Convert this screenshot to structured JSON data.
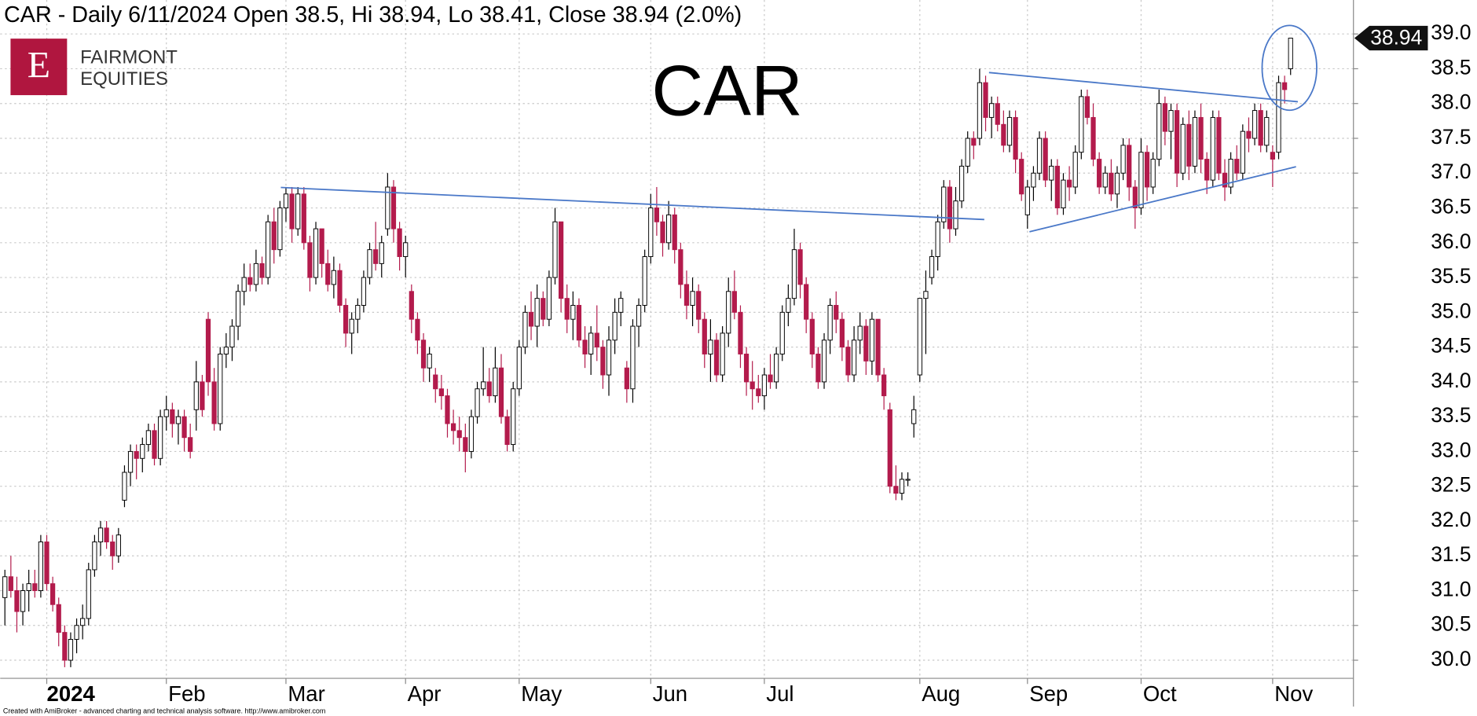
{
  "chart_data": {
    "type": "candlestick",
    "title": "CAR - Daily 6/11/2024 Open 38.5, Hi 38.94, Lo 38.41, Close 38.94 (2.0%)",
    "annotation": "CAR",
    "up_color": "#ffffff",
    "down_color": "#b31b4c",
    "grid": true,
    "ylim": [
      29.74,
      39.19
    ],
    "yticks": [
      {
        "value": 30,
        "label": "30.0"
      },
      {
        "value": 30.5,
        "label": "30.5"
      },
      {
        "value": 31,
        "label": "31.0"
      },
      {
        "value": 31.5,
        "label": "31.5"
      },
      {
        "value": 32,
        "label": "32.0"
      },
      {
        "value": 32.5,
        "label": "32.5"
      },
      {
        "value": 33,
        "label": "33.0"
      },
      {
        "value": 33.5,
        "label": "33.5"
      },
      {
        "value": 34,
        "label": "34.0"
      },
      {
        "value": 34.5,
        "label": "34.5"
      },
      {
        "value": 35,
        "label": "35.0"
      },
      {
        "value": 35.5,
        "label": "35.5"
      },
      {
        "value": 36,
        "label": "36.0"
      },
      {
        "value": 36.5,
        "label": "36.5"
      },
      {
        "value": 37,
        "label": "37.0"
      },
      {
        "value": 37.5,
        "label": "37.5"
      },
      {
        "value": 38,
        "label": "38.0"
      },
      {
        "value": 38.5,
        "label": "38.5"
      },
      {
        "value": 39,
        "label": "39.0"
      }
    ],
    "xticks": [
      {
        "value": 7,
        "label": "2024"
      },
      {
        "value": 27,
        "label": "Feb"
      },
      {
        "value": 47,
        "label": "Mar"
      },
      {
        "value": 67,
        "label": "Apr"
      },
      {
        "value": 86,
        "label": "May"
      },
      {
        "value": 108,
        "label": "Jun"
      },
      {
        "value": 127,
        "label": "Jul"
      },
      {
        "value": 153,
        "label": "Aug"
      },
      {
        "value": 171,
        "label": "Sep"
      },
      {
        "value": 190,
        "label": "Oct"
      },
      {
        "value": 212,
        "label": "Nov"
      }
    ],
    "ohlc": [
      [
        30.9,
        31.3,
        30.5,
        31.2
      ],
      [
        31.2,
        31.5,
        30.9,
        31.0
      ],
      [
        31.0,
        31.2,
        30.4,
        30.7
      ],
      [
        30.7,
        31.1,
        30.5,
        31.0
      ],
      [
        31.0,
        31.3,
        30.7,
        31.1
      ],
      [
        31.1,
        31.3,
        30.9,
        31.0
      ],
      [
        31.0,
        31.8,
        30.9,
        31.7
      ],
      [
        31.7,
        31.8,
        31.0,
        31.1
      ],
      [
        31.1,
        31.2,
        30.7,
        30.8
      ],
      [
        30.8,
        30.9,
        30.2,
        30.4
      ],
      [
        30.4,
        30.5,
        29.9,
        30.0
      ],
      [
        30.0,
        30.4,
        29.9,
        30.3
      ],
      [
        30.3,
        30.6,
        30.1,
        30.5
      ],
      [
        30.5,
        30.8,
        30.3,
        30.6
      ],
      [
        30.6,
        31.4,
        30.5,
        31.3
      ],
      [
        31.3,
        31.8,
        31.2,
        31.7
      ],
      [
        31.7,
        32.0,
        31.5,
        31.9
      ],
      [
        31.9,
        32.0,
        31.6,
        31.7
      ],
      [
        31.7,
        31.8,
        31.3,
        31.5
      ],
      [
        31.5,
        31.9,
        31.4,
        31.8
      ],
      [
        32.3,
        32.8,
        32.2,
        32.7
      ],
      [
        32.7,
        33.1,
        32.5,
        33.0
      ],
      [
        33.0,
        33.1,
        32.6,
        32.9
      ],
      [
        32.9,
        33.2,
        32.7,
        33.1
      ],
      [
        33.1,
        33.4,
        33.0,
        33.3
      ],
      [
        33.3,
        33.4,
        32.8,
        32.9
      ],
      [
        32.9,
        33.6,
        32.8,
        33.5
      ],
      [
        33.5,
        33.8,
        33.3,
        33.6
      ],
      [
        33.6,
        33.7,
        33.2,
        33.4
      ],
      [
        33.4,
        33.6,
        33.1,
        33.5
      ],
      [
        33.5,
        33.6,
        33.0,
        33.2
      ],
      [
        33.2,
        33.4,
        32.9,
        33.0
      ],
      [
        33.6,
        34.3,
        33.3,
        34.0
      ],
      [
        34.0,
        34.1,
        33.5,
        33.6
      ],
      [
        34.9,
        35.0,
        33.8,
        34.0
      ],
      [
        34.0,
        34.2,
        33.3,
        33.4
      ],
      [
        33.4,
        34.5,
        33.3,
        34.4
      ],
      [
        34.4,
        34.7,
        34.2,
        34.5
      ],
      [
        34.5,
        34.9,
        34.3,
        34.8
      ],
      [
        34.8,
        35.4,
        34.6,
        35.3
      ],
      [
        35.3,
        35.7,
        35.1,
        35.5
      ],
      [
        35.5,
        35.7,
        35.3,
        35.4
      ],
      [
        35.4,
        35.9,
        35.3,
        35.7
      ],
      [
        35.7,
        35.8,
        35.4,
        35.5
      ],
      [
        35.5,
        36.4,
        35.4,
        36.3
      ],
      [
        36.3,
        36.5,
        35.7,
        35.9
      ],
      [
        35.9,
        36.6,
        35.8,
        36.5
      ],
      [
        36.5,
        36.8,
        36.3,
        36.7
      ],
      [
        36.7,
        36.8,
        36.0,
        36.2
      ],
      [
        36.2,
        36.8,
        36.1,
        36.7
      ],
      [
        36.7,
        36.8,
        35.9,
        36.0
      ],
      [
        36.0,
        36.1,
        35.3,
        35.5
      ],
      [
        35.5,
        36.3,
        35.4,
        36.2
      ],
      [
        36.2,
        36.2,
        35.5,
        35.7
      ],
      [
        35.7,
        35.9,
        35.3,
        35.4
      ],
      [
        35.4,
        35.8,
        35.2,
        35.6
      ],
      [
        35.6,
        35.7,
        35.0,
        35.1
      ],
      [
        35.1,
        35.2,
        34.5,
        34.7
      ],
      [
        34.7,
        35.0,
        34.4,
        34.9
      ],
      [
        34.9,
        35.2,
        34.7,
        35.1
      ],
      [
        35.1,
        35.6,
        35.0,
        35.5
      ],
      [
        35.5,
        36.0,
        35.4,
        35.9
      ],
      [
        35.9,
        36.3,
        35.6,
        35.7
      ],
      [
        35.7,
        36.1,
        35.5,
        36.0
      ],
      [
        36.2,
        37.0,
        36.1,
        36.8
      ],
      [
        36.8,
        36.9,
        36.0,
        36.2
      ],
      [
        36.2,
        36.3,
        35.6,
        35.8
      ],
      [
        35.8,
        36.1,
        35.5,
        36.0
      ],
      [
        35.3,
        35.4,
        34.7,
        34.9
      ],
      [
        34.9,
        35.0,
        34.4,
        34.6
      ],
      [
        34.6,
        34.7,
        34.0,
        34.2
      ],
      [
        34.2,
        34.5,
        34.0,
        34.4
      ],
      [
        34.1,
        34.2,
        33.7,
        33.9
      ],
      [
        33.9,
        34.1,
        33.6,
        33.8
      ],
      [
        33.8,
        33.9,
        33.2,
        33.4
      ],
      [
        33.4,
        33.6,
        33.1,
        33.3
      ],
      [
        33.3,
        33.5,
        33.0,
        33.2
      ],
      [
        33.2,
        33.4,
        32.7,
        33.0
      ],
      [
        33.0,
        33.6,
        32.9,
        33.5
      ],
      [
        33.5,
        34.0,
        33.4,
        33.9
      ],
      [
        33.9,
        34.5,
        33.8,
        34.0
      ],
      [
        34.0,
        34.2,
        33.7,
        33.8
      ],
      [
        33.8,
        34.5,
        33.7,
        34.2
      ],
      [
        34.2,
        34.4,
        33.4,
        33.5
      ],
      [
        33.5,
        33.6,
        33.0,
        33.1
      ],
      [
        33.1,
        34.0,
        33.0,
        33.9
      ],
      [
        33.9,
        34.6,
        33.8,
        34.5
      ],
      [
        34.5,
        35.1,
        34.4,
        35.0
      ],
      [
        35.0,
        35.3,
        34.6,
        34.8
      ],
      [
        34.8,
        35.4,
        34.5,
        35.2
      ],
      [
        35.2,
        35.3,
        34.8,
        34.9
      ],
      [
        34.9,
        35.6,
        34.8,
        35.5
      ],
      [
        35.5,
        36.5,
        35.4,
        36.3
      ],
      [
        36.3,
        36.3,
        35.0,
        35.2
      ],
      [
        35.2,
        35.4,
        34.7,
        34.9
      ],
      [
        34.9,
        35.3,
        34.6,
        35.1
      ],
      [
        35.1,
        35.2,
        34.5,
        34.6
      ],
      [
        34.6,
        34.8,
        34.2,
        34.4
      ],
      [
        34.4,
        34.8,
        34.1,
        34.7
      ],
      [
        34.7,
        35.1,
        34.3,
        34.5
      ],
      [
        34.5,
        34.6,
        33.9,
        34.1
      ],
      [
        34.1,
        34.8,
        33.8,
        34.6
      ],
      [
        34.6,
        35.2,
        34.4,
        35.0
      ],
      [
        35.0,
        35.3,
        34.8,
        35.2
      ],
      [
        34.2,
        34.3,
        33.7,
        33.9
      ],
      [
        33.9,
        34.9,
        33.7,
        34.8
      ],
      [
        34.8,
        35.2,
        34.5,
        35.1
      ],
      [
        35.1,
        35.9,
        35.0,
        35.8
      ],
      [
        35.8,
        36.7,
        35.7,
        36.5
      ],
      [
        36.5,
        36.8,
        36.1,
        36.3
      ],
      [
        36.3,
        36.4,
        35.8,
        36.0
      ],
      [
        36.0,
        36.6,
        35.9,
        36.4
      ],
      [
        36.4,
        36.5,
        35.7,
        35.9
      ],
      [
        35.9,
        36.0,
        35.2,
        35.4
      ],
      [
        35.4,
        35.6,
        34.9,
        35.1
      ],
      [
        35.1,
        35.5,
        34.8,
        35.3
      ],
      [
        35.3,
        35.4,
        34.7,
        34.9
      ],
      [
        34.9,
        35.0,
        34.2,
        34.4
      ],
      [
        34.4,
        34.9,
        34.0,
        34.6
      ],
      [
        34.6,
        34.7,
        34.0,
        34.1
      ],
      [
        34.1,
        34.8,
        34.0,
        34.7
      ],
      [
        34.7,
        35.5,
        34.5,
        35.3
      ],
      [
        35.3,
        35.6,
        34.9,
        35.0
      ],
      [
        35.0,
        35.1,
        34.2,
        34.4
      ],
      [
        34.4,
        34.5,
        33.8,
        34.0
      ],
      [
        34.0,
        34.3,
        33.6,
        33.9
      ],
      [
        33.9,
        34.1,
        33.7,
        33.8
      ],
      [
        33.8,
        34.2,
        33.6,
        34.1
      ],
      [
        34.1,
        34.4,
        33.9,
        34.0
      ],
      [
        34.0,
        34.5,
        33.9,
        34.4
      ],
      [
        34.4,
        35.1,
        34.3,
        35.0
      ],
      [
        35.0,
        35.4,
        34.8,
        35.2
      ],
      [
        35.2,
        36.2,
        35.1,
        35.9
      ],
      [
        35.9,
        36.0,
        35.2,
        35.4
      ],
      [
        35.4,
        35.5,
        34.7,
        34.9
      ],
      [
        34.9,
        35.0,
        34.2,
        34.4
      ],
      [
        34.4,
        34.5,
        33.9,
        34.0
      ],
      [
        34.0,
        34.7,
        33.9,
        34.6
      ],
      [
        34.6,
        35.2,
        34.4,
        35.1
      ],
      [
        35.1,
        35.3,
        34.7,
        34.9
      ],
      [
        34.9,
        35.0,
        34.3,
        34.5
      ],
      [
        34.5,
        34.6,
        34.0,
        34.1
      ],
      [
        34.1,
        34.8,
        34.0,
        34.6
      ],
      [
        34.6,
        35.0,
        34.4,
        34.8
      ],
      [
        34.8,
        34.9,
        34.1,
        34.3
      ],
      [
        34.3,
        35.0,
        34.1,
        34.9
      ],
      [
        34.9,
        34.9,
        34.0,
        34.1
      ],
      [
        34.1,
        34.2,
        33.6,
        33.8
      ],
      [
        33.6,
        33.7,
        32.4,
        32.5
      ],
      [
        32.5,
        32.8,
        32.3,
        32.4
      ],
      [
        32.4,
        32.7,
        32.3,
        32.6
      ],
      [
        32.6,
        32.7,
        32.5,
        32.6
      ],
      [
        33.4,
        33.8,
        33.2,
        33.6
      ],
      [
        34.1,
        35.2,
        34.0,
        35.2
      ],
      [
        35.2,
        35.6,
        34.4,
        35.3
      ],
      [
        35.5,
        35.9,
        35.4,
        35.8
      ],
      [
        35.8,
        36.4,
        35.6,
        36.3
      ],
      [
        36.3,
        36.9,
        36.2,
        36.8
      ],
      [
        36.8,
        36.9,
        36.0,
        36.2
      ],
      [
        36.2,
        36.8,
        36.1,
        36.6
      ],
      [
        36.6,
        37.2,
        36.5,
        37.1
      ],
      [
        37.1,
        37.6,
        37.0,
        37.5
      ],
      [
        37.5,
        37.6,
        37.2,
        37.4
      ],
      [
        37.5,
        38.5,
        37.4,
        38.3
      ],
      [
        38.3,
        38.4,
        37.6,
        37.8
      ],
      [
        37.8,
        38.1,
        37.5,
        38.0
      ],
      [
        38.0,
        38.1,
        37.6,
        37.7
      ],
      [
        37.7,
        37.9,
        37.3,
        37.4
      ],
      [
        37.4,
        37.9,
        37.3,
        37.8
      ],
      [
        37.8,
        37.9,
        37.0,
        37.2
      ],
      [
        37.2,
        37.3,
        36.6,
        36.7
      ],
      [
        36.4,
        36.9,
        36.2,
        36.8
      ],
      [
        36.8,
        37.1,
        36.6,
        37.0
      ],
      [
        37.0,
        37.6,
        36.9,
        37.5
      ],
      [
        37.5,
        37.6,
        36.8,
        36.9
      ],
      [
        36.9,
        37.2,
        36.6,
        37.1
      ],
      [
        37.1,
        37.2,
        36.4,
        36.5
      ],
      [
        36.5,
        37.0,
        36.4,
        36.9
      ],
      [
        36.9,
        37.1,
        36.6,
        36.8
      ],
      [
        36.8,
        37.4,
        36.7,
        37.3
      ],
      [
        37.3,
        38.2,
        37.2,
        38.1
      ],
      [
        38.1,
        38.2,
        37.7,
        37.8
      ],
      [
        37.8,
        38.0,
        37.1,
        37.2
      ],
      [
        37.2,
        37.3,
        36.7,
        36.8
      ],
      [
        36.8,
        37.1,
        36.7,
        37.0
      ],
      [
        37.0,
        37.2,
        36.6,
        36.7
      ],
      [
        36.7,
        37.1,
        36.5,
        37.0
      ],
      [
        37.0,
        37.5,
        36.9,
        37.4
      ],
      [
        37.4,
        37.5,
        36.6,
        36.8
      ],
      [
        36.8,
        36.9,
        36.2,
        36.5
      ],
      [
        36.5,
        37.5,
        36.4,
        37.3
      ],
      [
        37.3,
        37.4,
        36.6,
        36.8
      ],
      [
        36.8,
        37.3,
        36.7,
        37.2
      ],
      [
        37.2,
        38.2,
        37.1,
        38.0
      ],
      [
        38.0,
        38.1,
        37.4,
        37.6
      ],
      [
        37.6,
        38.0,
        37.2,
        37.9
      ],
      [
        37.9,
        38.0,
        36.8,
        37.0
      ],
      [
        37.0,
        37.8,
        36.9,
        37.7
      ],
      [
        37.7,
        37.9,
        36.9,
        37.1
      ],
      [
        37.1,
        37.9,
        37.0,
        37.8
      ],
      [
        37.8,
        38.0,
        37.0,
        37.2
      ],
      [
        37.2,
        37.3,
        36.7,
        36.9
      ],
      [
        36.9,
        37.9,
        36.8,
        37.8
      ],
      [
        37.8,
        37.9,
        36.9,
        37.0
      ],
      [
        37.0,
        37.2,
        36.6,
        36.8
      ],
      [
        36.8,
        37.3,
        36.7,
        37.2
      ],
      [
        37.2,
        37.4,
        36.9,
        37.0
      ],
      [
        37.0,
        37.7,
        36.9,
        37.6
      ],
      [
        37.6,
        37.8,
        37.3,
        37.5
      ],
      [
        37.5,
        38.0,
        37.4,
        37.9
      ],
      [
        37.9,
        38.0,
        37.3,
        37.4
      ],
      [
        37.4,
        37.9,
        37.3,
        37.8
      ],
      [
        37.3,
        37.4,
        36.8,
        37.2
      ],
      [
        37.3,
        38.4,
        37.2,
        38.3
      ],
      [
        38.3,
        38.4,
        38.0,
        38.2
      ],
      [
        38.5,
        38.94,
        38.41,
        38.94
      ]
    ]
  },
  "branding": {
    "letter": "E",
    "line1": "FAIRMONT",
    "line2": "EQUITIES"
  },
  "footer": "Created with AmiBroker - advanced charting and technical analysis software. http://www.amibroker.com"
}
